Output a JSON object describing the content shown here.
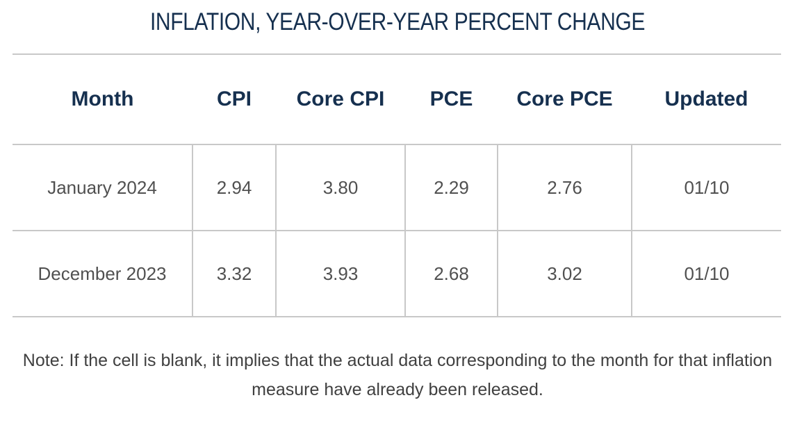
{
  "title": "INFLATION, YEAR-OVER-YEAR PERCENT CHANGE",
  "table": {
    "headers": [
      "Month",
      "CPI",
      "Core CPI",
      "PCE",
      "Core PCE",
      "Updated"
    ],
    "rows": [
      [
        "January 2024",
        "2.94",
        "3.80",
        "2.29",
        "2.76",
        "01/10"
      ],
      [
        "December 2023",
        "3.32",
        "3.93",
        "2.68",
        "3.02",
        "01/10"
      ]
    ]
  },
  "note": "Note: If the cell is blank, it implies that the actual data corresponding to the month for that inflation measure have already been released.",
  "colors": {
    "heading": "#16304f",
    "text": "#505050",
    "border": "#c8c8c8"
  }
}
